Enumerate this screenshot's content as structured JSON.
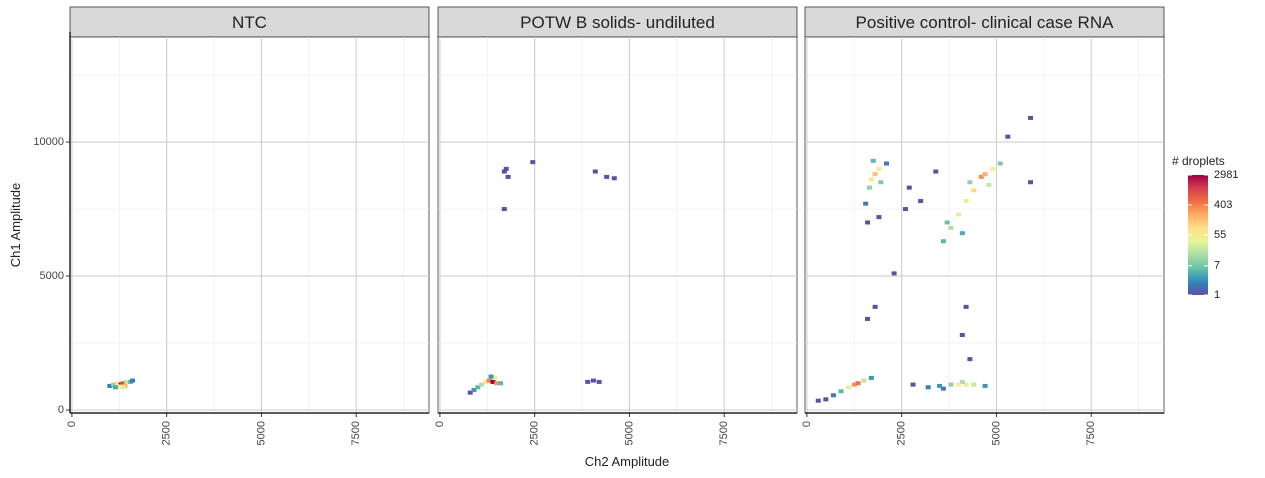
{
  "chart_data": {
    "type": "hexbin",
    "xlabel": "Ch2 Amplitude",
    "ylabel": "Ch1 Amplitude",
    "xlim": [
      -50,
      9420
    ],
    "ylim": [
      -110,
      13920
    ],
    "xticks": [
      0,
      2500,
      5000,
      7500
    ],
    "yticks": [
      0,
      5000,
      10000
    ],
    "xminor_ticks": [
      1250,
      3750,
      6250,
      8750
    ],
    "yminor_ticks": [
      2500,
      7500,
      12500
    ],
    "grid": true,
    "legend": {
      "title": "# droplets",
      "position": "right",
      "scale": "log",
      "lim": [
        1,
        2981
      ],
      "breaks": [
        1,
        7,
        55,
        403,
        2981
      ],
      "colors": [
        "#5e4fa2",
        "#3288bd",
        "#66c2a5",
        "#abdda4",
        "#e6f598",
        "#fee08b",
        "#fdae61",
        "#f46d43",
        "#d53e4f",
        "#9e0142"
      ]
    },
    "facets": [
      {
        "title": "NTC",
        "x": [
          1000,
          1100,
          1200,
          1300,
          1350,
          1400,
          1250,
          1450,
          1550,
          1600,
          1150,
          1350
        ],
        "y": [
          900,
          950,
          1000,
          950,
          1000,
          900,
          880,
          1050,
          1050,
          1100,
          850,
          850
        ],
        "counts": [
          2,
          10,
          80,
          2981,
          800,
          200,
          50,
          20,
          5,
          2,
          4,
          30
        ]
      },
      {
        "title": "POTW B solids- undiluted",
        "x": [
          800,
          900,
          1000,
          1100,
          1200,
          1300,
          1400,
          1500,
          1450,
          1600,
          1350,
          1700,
          1800,
          1700,
          1750,
          2450,
          4100,
          4400,
          4600,
          3900,
          4050,
          4200
        ],
        "y": [
          650,
          750,
          850,
          950,
          1050,
          1100,
          1050,
          1000,
          1200,
          1000,
          1250,
          8900,
          8700,
          7500,
          9000,
          9250,
          8900,
          8700,
          8650,
          1050,
          1100,
          1050
        ],
        "counts": [
          1,
          3,
          5,
          15,
          60,
          400,
          2981,
          300,
          40,
          5,
          3,
          1,
          1,
          1,
          1,
          1,
          1,
          1,
          1,
          1,
          1,
          1
        ]
      },
      {
        "title": "Positive control- clinical case RNA",
        "x": [
          300,
          500,
          700,
          900,
          1100,
          1250,
          1350,
          1500,
          1700,
          1700,
          1800,
          1900,
          1650,
          1750,
          1950,
          1550,
          1600,
          1900,
          2100,
          3600,
          3800,
          4000,
          4200,
          4400,
          4600,
          4700,
          4900,
          5100,
          4300,
          4800,
          3700,
          4100,
          5300,
          5900,
          5900,
          3400,
          2700,
          3000,
          2600,
          2300,
          2800,
          3200,
          3500,
          3800,
          4000,
          4200,
          4400,
          4700,
          3600,
          4100,
          4200,
          4100,
          4300,
          1800,
          1600
        ],
        "y": [
          350,
          400,
          550,
          700,
          850,
          950,
          1000,
          1100,
          1200,
          8600,
          8800,
          9000,
          8300,
          9300,
          8500,
          7700,
          7000,
          7200,
          9200,
          6300,
          6800,
          7300,
          7800,
          8200,
          8700,
          8800,
          9000,
          9200,
          8500,
          8400,
          7000,
          6600,
          10200,
          10900,
          8500,
          8900,
          8300,
          7800,
          7500,
          5100,
          950,
          850,
          900,
          950,
          950,
          950,
          950,
          900,
          800,
          1050,
          3850,
          2800,
          1900,
          3850,
          3400
        ],
        "counts": [
          1,
          1,
          2,
          5,
          30,
          300,
          500,
          20,
          3,
          60,
          150,
          40,
          10,
          5,
          8,
          2,
          1,
          1,
          2,
          5,
          15,
          30,
          50,
          100,
          300,
          200,
          40,
          8,
          10,
          20,
          6,
          4,
          1,
          1,
          1,
          1,
          1,
          1,
          1,
          1,
          1,
          2,
          3,
          10,
          40,
          60,
          20,
          3,
          2,
          15,
          1,
          1,
          1,
          1,
          1
        ]
      }
    ]
  }
}
